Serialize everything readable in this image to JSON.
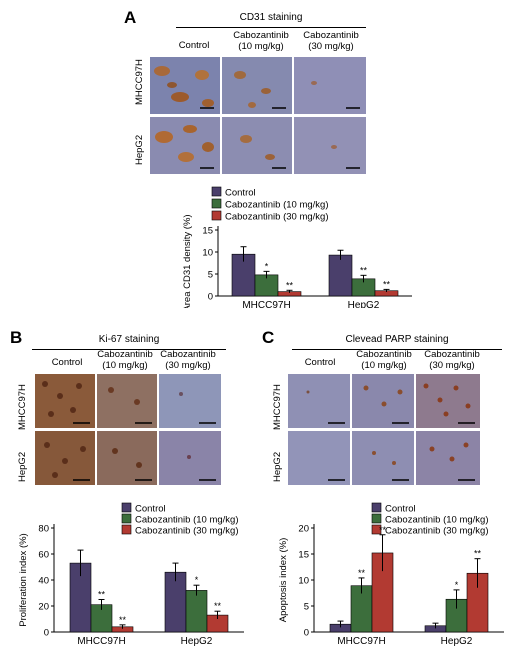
{
  "panels": {
    "A": {
      "letter": "A",
      "staining_title": "CD31 staining",
      "columns": [
        {
          "line1": "Control",
          "line2": ""
        },
        {
          "line1": "Cabozantinib",
          "line2": "(10 mg/kg)"
        },
        {
          "line1": "Cabozantinib",
          "line2": "(30 mg/kg)"
        }
      ],
      "rows": [
        "MHCC97H",
        "HepG2"
      ]
    },
    "B": {
      "letter": "B",
      "staining_title": "Ki-67 staining",
      "columns": [
        {
          "line1": "Control",
          "line2": ""
        },
        {
          "line1": "Cabozantinib",
          "line2": "(10 mg/kg)"
        },
        {
          "line1": "Cabozantinib",
          "line2": "(30 mg/kg)"
        }
      ],
      "rows": [
        "MHCC97H",
        "HepG2"
      ]
    },
    "C": {
      "letter": "C",
      "staining_title": "Clevead PARP staining",
      "columns": [
        {
          "line1": "Control",
          "line2": ""
        },
        {
          "line1": "Cabozantinib",
          "line2": "(10 mg/kg)"
        },
        {
          "line1": "Cabozantinib",
          "line2": "(30 mg/kg)"
        }
      ],
      "rows": [
        "MHCC97H",
        "HepG2"
      ]
    }
  },
  "colors": {
    "control": "#4a3f6b",
    "cabo10": "#3c6e3c",
    "cabo30": "#b23a32"
  },
  "chart_data": [
    {
      "id": "A",
      "type": "bar",
      "categories": [
        "MHCC97H",
        "HepG2"
      ],
      "series": [
        {
          "name": "Control",
          "values": [
            9.5,
            9.3
          ],
          "errors": [
            1.7,
            1.1
          ],
          "sig": [
            "",
            ""
          ]
        },
        {
          "name": "Cabozantinib (10 mg/kg)",
          "values": [
            4.8,
            3.9
          ],
          "errors": [
            0.8,
            0.8
          ],
          "sig": [
            "*",
            "**"
          ]
        },
        {
          "name": "Cabozantinib (30 mg/kg)",
          "values": [
            1.0,
            1.2
          ],
          "errors": [
            0.3,
            0.3
          ],
          "sig": [
            "**",
            "**"
          ]
        }
      ],
      "ylabel": "Area CD31 density (%)",
      "ylim": [
        0,
        15
      ],
      "yticks": [
        0,
        5,
        10,
        15
      ],
      "legend": "top"
    },
    {
      "id": "B",
      "type": "bar",
      "categories": [
        "MHCC97H",
        "HepG2"
      ],
      "series": [
        {
          "name": "Control",
          "values": [
            53,
            46
          ],
          "errors": [
            10,
            7
          ],
          "sig": [
            "",
            ""
          ]
        },
        {
          "name": "Cabozantinib (10 mg/kg)",
          "values": [
            21,
            32
          ],
          "errors": [
            4,
            4
          ],
          "sig": [
            "**",
            "*"
          ]
        },
        {
          "name": "Cabozantinib (30 mg/kg)",
          "values": [
            4,
            13
          ],
          "errors": [
            1.5,
            3
          ],
          "sig": [
            "**",
            "**"
          ]
        }
      ],
      "ylabel": "Proliferation index (%)",
      "ylim": [
        0,
        80
      ],
      "yticks": [
        0,
        20,
        40,
        60,
        80
      ],
      "legend": "top"
    },
    {
      "id": "C",
      "type": "bar",
      "categories": [
        "MHCC97H",
        "HepG2"
      ],
      "series": [
        {
          "name": "Control",
          "values": [
            1.5,
            1.2
          ],
          "errors": [
            0.6,
            0.5
          ],
          "sig": [
            "",
            ""
          ]
        },
        {
          "name": "Cabozantinib (10 mg/kg)",
          "values": [
            8.9,
            6.3
          ],
          "errors": [
            1.5,
            1.8
          ],
          "sig": [
            "**",
            "*"
          ]
        },
        {
          "name": "Cabozantinib (30 mg/kg)",
          "values": [
            15.2,
            11.3
          ],
          "errors": [
            3.5,
            2.8
          ],
          "sig": [
            "**",
            "**"
          ]
        }
      ],
      "ylabel": "Apoptosis index (%)",
      "ylim": [
        0,
        20
      ],
      "yticks": [
        0,
        5,
        10,
        15,
        20
      ],
      "legend": "top"
    }
  ]
}
